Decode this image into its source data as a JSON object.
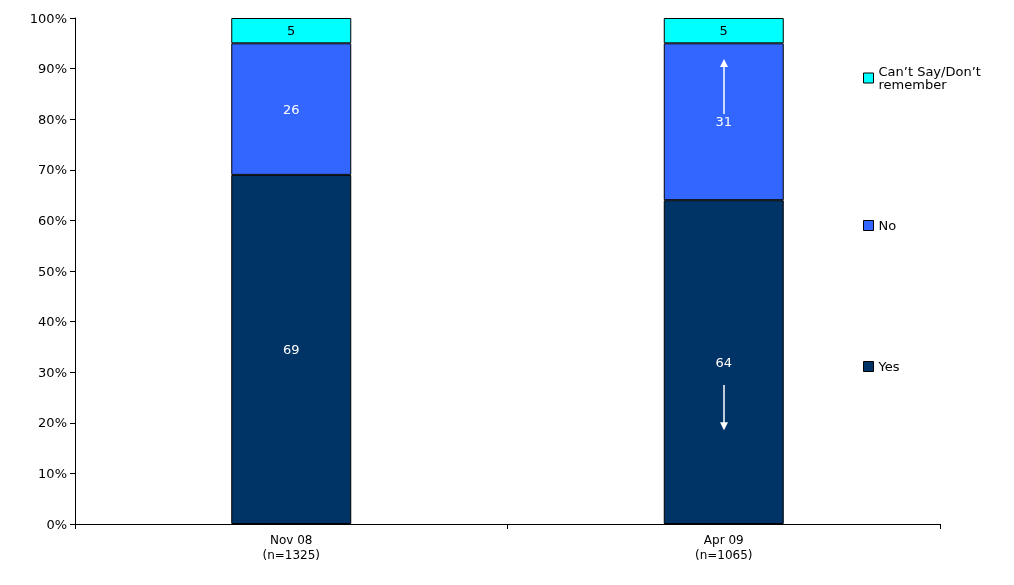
{
  "chart_data": {
    "type": "bar",
    "stacked": true,
    "categories": [
      "Nov 08\n(n=1325)",
      "Apr 09\n(n=1065)"
    ],
    "series": [
      {
        "name": "Yes",
        "color": "#003366",
        "values": [
          69,
          64
        ]
      },
      {
        "name": "No",
        "color": "#3366ff",
        "values": [
          26,
          31
        ]
      },
      {
        "name": "Can’t Say/Don’t\nremember",
        "color": "#00ffff",
        "values": [
          5,
          5
        ]
      }
    ],
    "ylim": [
      0,
      100
    ],
    "yticks": [
      {
        "value": 0,
        "label": "0%"
      },
      {
        "value": 10,
        "label": "10%"
      },
      {
        "value": 20,
        "label": "20%"
      },
      {
        "value": 30,
        "label": "30%"
      },
      {
        "value": 40,
        "label": "40%"
      },
      {
        "value": 50,
        "label": "50%"
      },
      {
        "value": 60,
        "label": "60%"
      },
      {
        "value": 70,
        "label": "70%"
      },
      {
        "value": 80,
        "label": "80%"
      },
      {
        "value": 90,
        "label": "90%"
      },
      {
        "value": 100,
        "label": "100%"
      }
    ],
    "data_labels": true,
    "legend": "right",
    "grid": false
  }
}
